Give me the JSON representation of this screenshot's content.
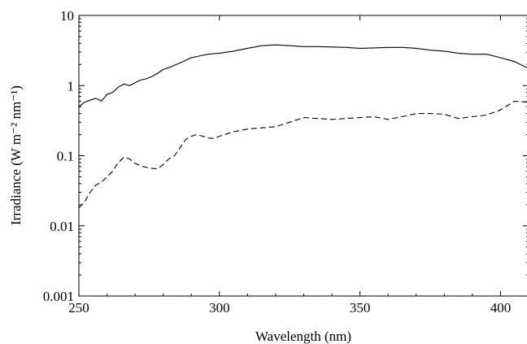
{
  "chart_data": {
    "type": "line",
    "xlabel": "Wavelength (nm)",
    "ylabel": "Irradiance (W m⁻² nm⁻¹)",
    "xlim": [
      250,
      410
    ],
    "ylim": [
      0.001,
      10
    ],
    "y_scale": "log",
    "grid": false,
    "legend": "none",
    "x_ticks": [
      250,
      300,
      350,
      400
    ],
    "x_tick_labels": [
      "250",
      "300",
      "350",
      "400"
    ],
    "y_ticks": [
      0.001,
      0.01,
      0.1,
      1,
      10
    ],
    "y_tick_labels": [
      "0.001",
      "0.01",
      "0.1",
      "1",
      "10"
    ],
    "series": [
      {
        "style": "solid",
        "color": "#000000",
        "x": [
          250,
          252,
          254,
          256,
          258,
          260,
          262,
          264,
          266,
          268,
          270,
          272,
          274,
          276,
          278,
          280,
          282,
          284,
          286,
          288,
          290,
          292,
          294,
          296,
          298,
          300,
          305,
          310,
          315,
          320,
          325,
          330,
          335,
          340,
          345,
          350,
          355,
          360,
          365,
          370,
          375,
          380,
          385,
          390,
          395,
          400,
          405,
          410
        ],
        "y": [
          0.5,
          0.58,
          0.62,
          0.66,
          0.6,
          0.75,
          0.8,
          0.95,
          1.05,
          1.0,
          1.1,
          1.2,
          1.25,
          1.35,
          1.5,
          1.7,
          1.8,
          1.95,
          2.1,
          2.3,
          2.5,
          2.6,
          2.7,
          2.8,
          2.85,
          2.9,
          3.1,
          3.4,
          3.7,
          3.8,
          3.7,
          3.6,
          3.6,
          3.55,
          3.5,
          3.4,
          3.45,
          3.5,
          3.5,
          3.4,
          3.2,
          3.1,
          2.9,
          2.8,
          2.8,
          2.5,
          2.2,
          1.75
        ]
      },
      {
        "style": "dashed",
        "color": "#000000",
        "x": [
          250,
          252,
          254,
          256,
          258,
          260,
          262,
          264,
          266,
          268,
          270,
          272,
          274,
          276,
          278,
          280,
          282,
          284,
          286,
          288,
          290,
          292,
          294,
          296,
          298,
          300,
          305,
          310,
          315,
          320,
          325,
          330,
          335,
          340,
          345,
          350,
          355,
          360,
          365,
          370,
          375,
          380,
          385,
          390,
          395,
          400,
          405,
          410
        ],
        "y": [
          0.018,
          0.022,
          0.03,
          0.038,
          0.042,
          0.05,
          0.06,
          0.08,
          0.095,
          0.09,
          0.078,
          0.072,
          0.068,
          0.066,
          0.065,
          0.075,
          0.09,
          0.1,
          0.13,
          0.17,
          0.19,
          0.2,
          0.19,
          0.18,
          0.175,
          0.19,
          0.22,
          0.24,
          0.25,
          0.26,
          0.3,
          0.35,
          0.34,
          0.33,
          0.34,
          0.35,
          0.36,
          0.33,
          0.36,
          0.4,
          0.4,
          0.39,
          0.34,
          0.36,
          0.38,
          0.45,
          0.6,
          0.58
        ]
      }
    ]
  }
}
